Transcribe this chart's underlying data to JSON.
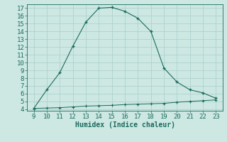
{
  "x": [
    9,
    10,
    11,
    12,
    13,
    14,
    15,
    16,
    17,
    18,
    19,
    20,
    21,
    22,
    23
  ],
  "y_upper": [
    4.1,
    6.5,
    8.7,
    12.1,
    15.2,
    17.0,
    17.1,
    16.6,
    15.7,
    14.0,
    9.3,
    7.5,
    6.5,
    6.1,
    5.4
  ],
  "y_lower": [
    4.1,
    4.15,
    4.2,
    4.3,
    4.4,
    4.45,
    4.5,
    4.6,
    4.65,
    4.7,
    4.75,
    4.9,
    5.0,
    5.1,
    5.2
  ],
  "xlim_min": 8.5,
  "xlim_max": 23.5,
  "ylim_min": 3.8,
  "ylim_max": 17.5,
  "xlabel": "Humidex (Indice chaleur)",
  "xticks": [
    9,
    10,
    11,
    12,
    13,
    14,
    15,
    16,
    17,
    18,
    19,
    20,
    21,
    22,
    23
  ],
  "yticks": [
    4,
    5,
    6,
    7,
    8,
    9,
    10,
    11,
    12,
    13,
    14,
    15,
    16,
    17
  ],
  "line_color": "#1a6b5e",
  "bg_color": "#cde8e3",
  "grid_color": "#a8cdc8",
  "xlabel_fontsize": 7,
  "tick_fontsize": 6.5,
  "marker": "+"
}
